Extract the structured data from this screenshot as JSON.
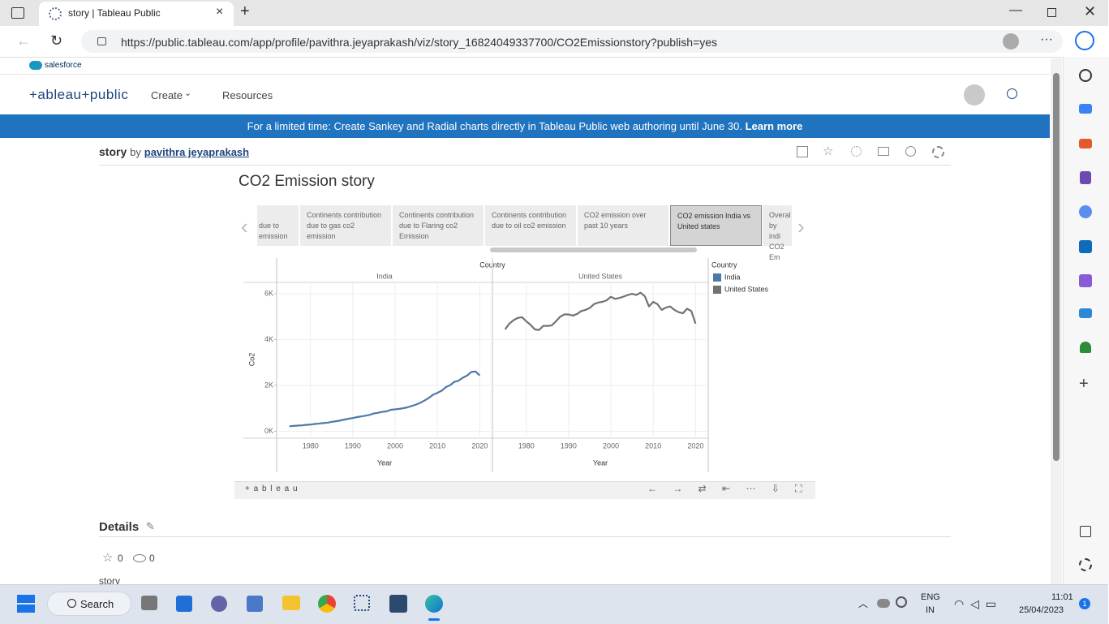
{
  "browser": {
    "tab_title": "story | Tableau Public",
    "url": "https://public.tableau.com/app/profile/pavithra.jeyaprakash/viz/story_16824049337700/CO2Emissionstory?publish=yes"
  },
  "site": {
    "brand_bar": "salesforce",
    "logo": "+ableau+public",
    "nav": [
      "Create",
      "Resources"
    ],
    "banner": {
      "text": "For a limited time: Create Sankey and Radial charts directly in Tableau Public web authoring until June 30.",
      "link": "Learn more"
    }
  },
  "viz": {
    "name": "story",
    "by": "by",
    "author": "pavithra jeyaprakash",
    "story_title": "CO2 Emission story",
    "story_points": [
      "due to emission",
      "Continents contribution due to gas co2 emission",
      "Continents contribution due to Flaring co2 Emission",
      "Continents contribution due to oil co2 emission",
      "CO2 emission over past 10 years",
      "CO2 emission  India vs United states",
      "Overal by indi CO2 Em"
    ],
    "footer_logo": "+ a b l e a u"
  },
  "chart_data": {
    "type": "line",
    "column_header": "Country",
    "x_label": "Year",
    "y_label": "Co2",
    "legend_title": "Country",
    "grid": true,
    "x": [
      1975,
      1976,
      1977,
      1978,
      1979,
      1980,
      1981,
      1982,
      1983,
      1984,
      1985,
      1986,
      1987,
      1988,
      1989,
      1990,
      1991,
      1992,
      1993,
      1994,
      1995,
      1996,
      1997,
      1998,
      1999,
      2000,
      2001,
      2002,
      2003,
      2004,
      2005,
      2006,
      2007,
      2008,
      2009,
      2010,
      2011,
      2012,
      2013,
      2014,
      2015,
      2016,
      2017,
      2018,
      2019,
      2020
    ],
    "xlim": [
      1972,
      2023
    ],
    "xticks": [
      1980,
      1990,
      2000,
      2010,
      2020
    ],
    "ylim": [
      -300,
      6500
    ],
    "yticks": [
      {
        "value": 0,
        "label": "0K"
      },
      {
        "value": 2000,
        "label": "2K"
      },
      {
        "value": 4000,
        "label": "4K"
      },
      {
        "value": 6000,
        "label": "6K"
      }
    ],
    "series": [
      {
        "name": "India",
        "color": "#4e79a7",
        "values": [
          220,
          235,
          250,
          260,
          280,
          295,
          320,
          335,
          360,
          375,
          410,
          440,
          470,
          510,
          550,
          580,
          620,
          650,
          680,
          720,
          780,
          810,
          850,
          870,
          940,
          960,
          980,
          1010,
          1050,
          1110,
          1170,
          1250,
          1350,
          1460,
          1600,
          1680,
          1770,
          1930,
          2010,
          2160,
          2210,
          2340,
          2430,
          2590,
          2610,
          2440
        ]
      },
      {
        "name": "United States",
        "color": "#76706e",
        "values": [
          4450,
          4700,
          4850,
          4950,
          4980,
          4800,
          4650,
          4450,
          4420,
          4600,
          4600,
          4620,
          4800,
          5000,
          5100,
          5100,
          5050,
          5120,
          5250,
          5300,
          5380,
          5550,
          5620,
          5650,
          5720,
          5870,
          5780,
          5820,
          5880,
          5950,
          6000,
          5950,
          6050,
          5900,
          5450,
          5650,
          5550,
          5300,
          5400,
          5450,
          5300,
          5200,
          5150,
          5350,
          5250,
          4700
        ]
      }
    ]
  },
  "details": {
    "heading": "Details",
    "favorites": 0,
    "views": 0,
    "description": "story"
  },
  "taskbar": {
    "search": "Search",
    "language": "ENG",
    "region": "IN",
    "time": "11:01",
    "date": "25/04/2023",
    "notifications": 1
  }
}
